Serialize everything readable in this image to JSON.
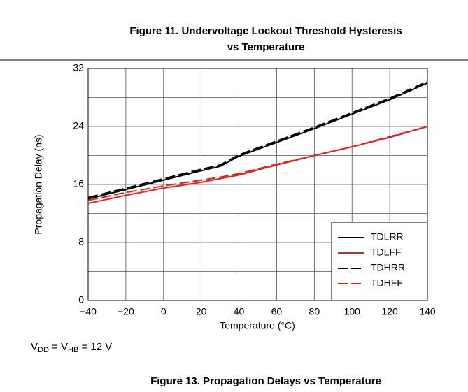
{
  "header_caption": [
    "Figure 11. Undervoltage Lockout Threshold Hysteresis",
    "vs Temperature"
  ],
  "chart_data": {
    "type": "line",
    "caption": "Figure 13. Propagation Delays vs Temperature",
    "x_label": "Temperature (°C)",
    "y_label": "Propagation Delay (ns)",
    "note": [
      "V",
      "DD",
      " = V",
      "HB",
      " = 12 V"
    ],
    "x": [
      -40,
      -20,
      0,
      20,
      30,
      40,
      60,
      80,
      100,
      120,
      140
    ],
    "series": [
      {
        "name": "TDLRR",
        "color": "#000000",
        "dash": false,
        "values": [
          14,
          15.3,
          16.6,
          17.9,
          18.5,
          19.9,
          21.8,
          23.7,
          25.7,
          27.7,
          30
        ]
      },
      {
        "name": "TDLFF",
        "color": "#e8201c",
        "dash": false,
        "values": [
          13.4,
          14.5,
          15.5,
          16.3,
          16.8,
          17.3,
          18.7,
          20,
          21.2,
          22.5,
          24
        ]
      },
      {
        "name": "TDHRR",
        "color": "#000000",
        "dash": true,
        "values": [
          14.2,
          15.5,
          16.8,
          18.1,
          18.7,
          20.1,
          22,
          23.9,
          25.9,
          27.9,
          30.2
        ]
      },
      {
        "name": "TDHFF",
        "color": "#e8201c",
        "dash": true,
        "values": [
          13.8,
          14.9,
          15.8,
          16.6,
          17,
          17.5,
          18.8,
          20,
          21.2,
          22.6,
          24
        ]
      }
    ],
    "xlim": [
      -40,
      140
    ],
    "xticks": [
      {
        "value": -40,
        "label": "−40"
      },
      {
        "value": -20,
        "label": "−20"
      },
      0,
      20,
      40,
      60,
      80,
      100,
      120,
      140
    ],
    "ylim": [
      0,
      32
    ],
    "yticks": [
      0,
      8,
      16,
      24,
      32
    ],
    "y_minor_grid": [
      4,
      12,
      20,
      28
    ],
    "grid": true,
    "legend": "lower right"
  }
}
